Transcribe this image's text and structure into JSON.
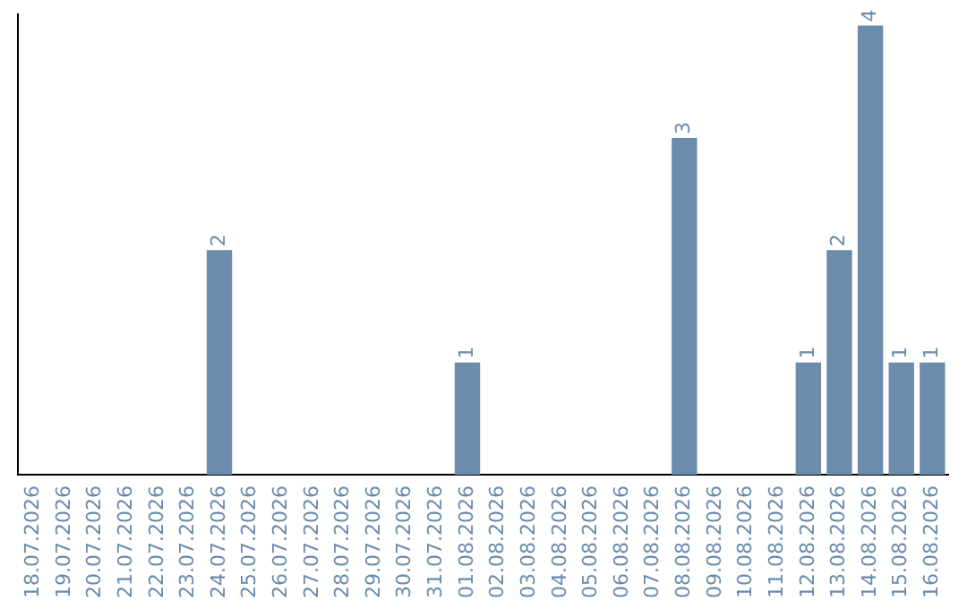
{
  "chart_data": {
    "type": "bar",
    "categories": [
      "18.07.2026",
      "19.07.2026",
      "20.07.2026",
      "21.07.2026",
      "22.07.2026",
      "23.07.2026",
      "24.07.2026",
      "25.07.2026",
      "26.07.2026",
      "27.07.2026",
      "28.07.2026",
      "29.07.2026",
      "30.07.2026",
      "31.07.2026",
      "01.08.2026",
      "02.08.2026",
      "03.08.2026",
      "04.08.2026",
      "05.08.2026",
      "06.08.2026",
      "07.08.2026",
      "08.08.2026",
      "09.08.2026",
      "10.08.2026",
      "11.08.2026",
      "12.08.2026",
      "13.08.2026",
      "14.08.2026",
      "15.08.2026",
      "16.08.2026"
    ],
    "values": [
      0,
      0,
      0,
      0,
      0,
      0,
      2,
      0,
      0,
      0,
      0,
      0,
      0,
      0,
      1,
      0,
      0,
      0,
      0,
      0,
      0,
      3,
      0,
      0,
      0,
      1,
      2,
      4,
      1,
      1
    ],
    "value_labels": [
      null,
      null,
      null,
      null,
      null,
      null,
      "2",
      null,
      null,
      null,
      null,
      null,
      null,
      null,
      "1",
      null,
      null,
      null,
      null,
      null,
      null,
      "3",
      null,
      null,
      null,
      "1",
      "2",
      "4",
      "1",
      "1"
    ],
    "color": "#6b8cab",
    "ylim": [
      0,
      4.1
    ],
    "tick_labels": "x",
    "grid": false,
    "legend": false
  }
}
